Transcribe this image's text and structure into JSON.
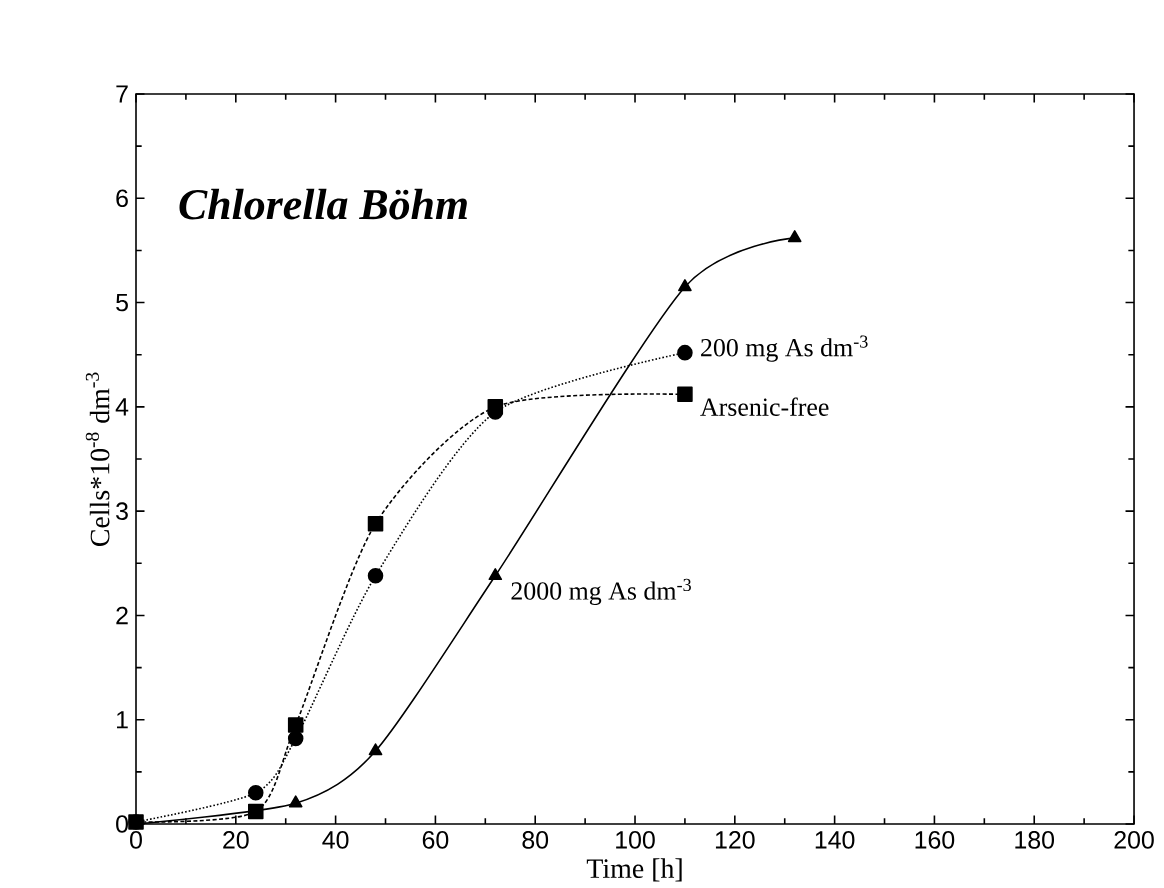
{
  "chart_data": {
    "type": "line",
    "title": "Chlorella Böhm",
    "xlabel": "Time [h]",
    "ylabel": "Cells*10$^{-8}$ dm$^{-3}$",
    "xlim": [
      0,
      200
    ],
    "ylim": [
      0,
      7
    ],
    "xticks": [
      0,
      20,
      40,
      60,
      80,
      100,
      120,
      140,
      160,
      180,
      200
    ],
    "yticks": [
      0,
      1,
      2,
      3,
      4,
      5,
      6,
      7
    ],
    "series": [
      {
        "name": "Arsenic-free",
        "color": "#000000",
        "marker": "square",
        "line_style": "dashed",
        "x": [
          0,
          24,
          32,
          48,
          72,
          110
        ],
        "values": [
          0.02,
          0.12,
          0.95,
          2.88,
          4.0,
          4.12
        ]
      },
      {
        "name": "200 mg As dm$^{-3}$",
        "color": "#000000",
        "marker": "circle",
        "line_style": "dotted",
        "x": [
          0,
          24,
          32,
          48,
          72,
          110
        ],
        "values": [
          0.02,
          0.3,
          0.82,
          2.38,
          3.95,
          4.52
        ]
      },
      {
        "name": "2000 mg As dm$^{-3}$",
        "color": "#000000",
        "marker": "triangle",
        "line_style": "solid",
        "x": [
          0,
          32,
          48,
          72,
          110,
          132
        ],
        "values": [
          0.0,
          0.2,
          0.7,
          2.38,
          5.15,
          5.62
        ]
      }
    ]
  }
}
